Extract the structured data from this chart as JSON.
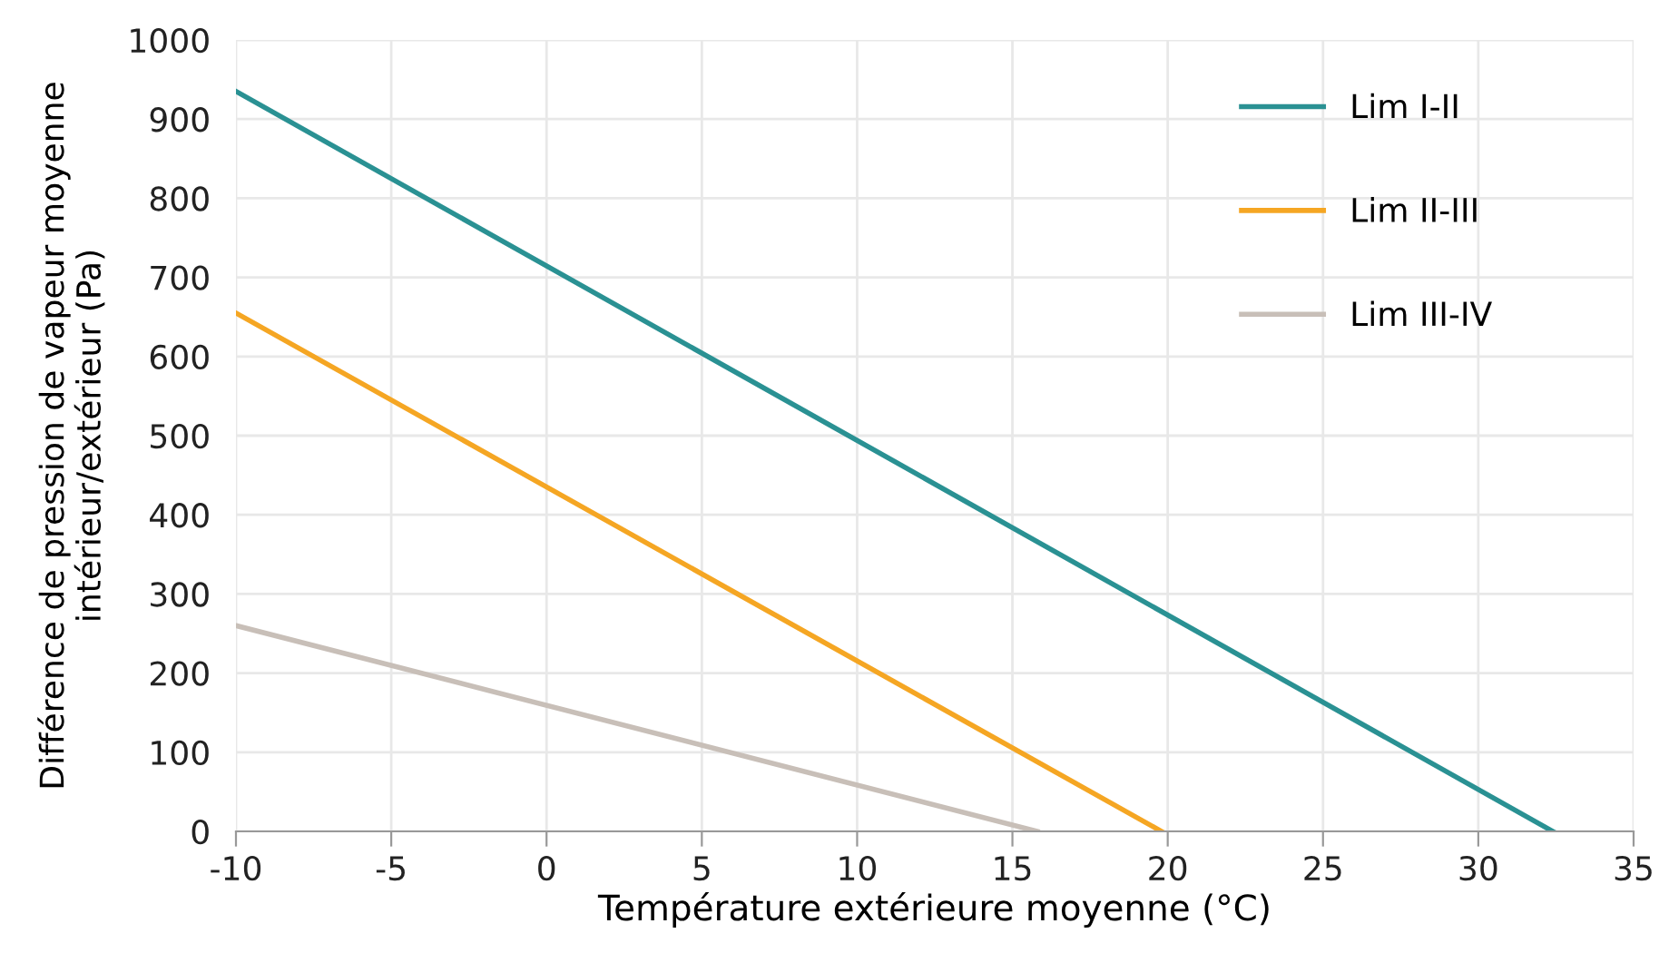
{
  "chart_data": {
    "type": "line",
    "xlabel": "Température extérieure moyenne (°C)",
    "ylabel": "Différence de pression de vapeur moyenne\nintérieur/extérieur (Pa)",
    "series": [
      {
        "name": "Lim I-II",
        "color": "#2a9193",
        "x": [
          -10,
          32.4
        ],
        "values": [
          935,
          0
        ]
      },
      {
        "name": "Lim II-III",
        "color": "#f5a623",
        "x": [
          -10,
          19.8
        ],
        "values": [
          655,
          0
        ]
      },
      {
        "name": "Lim III-IV",
        "color": "#c8bfb8",
        "x": [
          -10,
          15.8
        ],
        "values": [
          260,
          0
        ]
      }
    ],
    "xlim": [
      -10,
      35
    ],
    "xticks": [
      -10,
      -5,
      0,
      5,
      10,
      15,
      20,
      25,
      30,
      35
    ],
    "ylim": [
      0,
      1000
    ],
    "yticks": [
      0,
      100,
      200,
      300,
      400,
      500,
      600,
      700,
      800,
      900,
      1000
    ],
    "grid": true,
    "legend": "top right",
    "marker": "none",
    "line_style": "solid"
  }
}
